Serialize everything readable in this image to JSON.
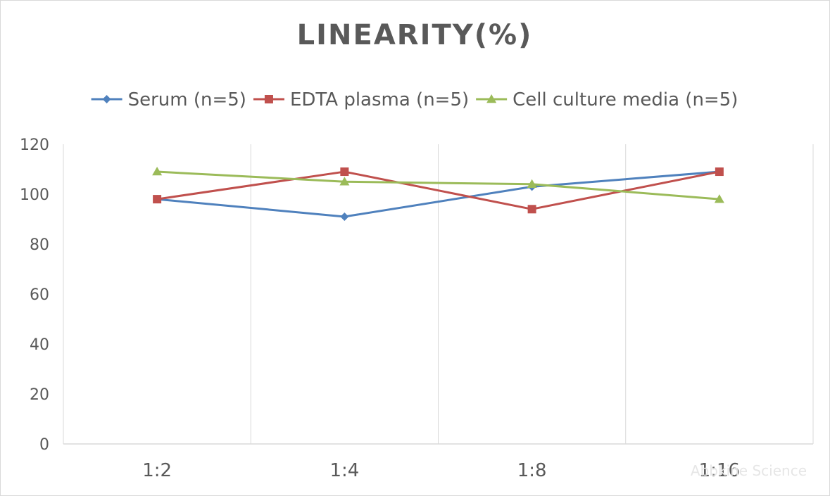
{
  "chart_data": {
    "type": "line",
    "title": "LINEARITY(%)",
    "categories": [
      "1:2",
      "1:4",
      "1:8",
      "1:16"
    ],
    "ylim": [
      0,
      120
    ],
    "yticks": [
      0,
      20,
      40,
      60,
      80,
      100,
      120
    ],
    "grid": "vertical",
    "legend_position": "top",
    "series": [
      {
        "name": "Serum (n=5)",
        "color": "#4f81bd",
        "marker": "diamond",
        "values": [
          98,
          91,
          103,
          109
        ]
      },
      {
        "name": "EDTA plasma (n=5)",
        "color": "#c0504d",
        "marker": "square",
        "values": [
          98,
          109,
          94,
          109
        ]
      },
      {
        "name": "Cell culture media (n=5)",
        "color": "#9bbb59",
        "marker": "triangle",
        "values": [
          109,
          105,
          104,
          98
        ]
      }
    ]
  },
  "watermark": "Abbkine Science"
}
